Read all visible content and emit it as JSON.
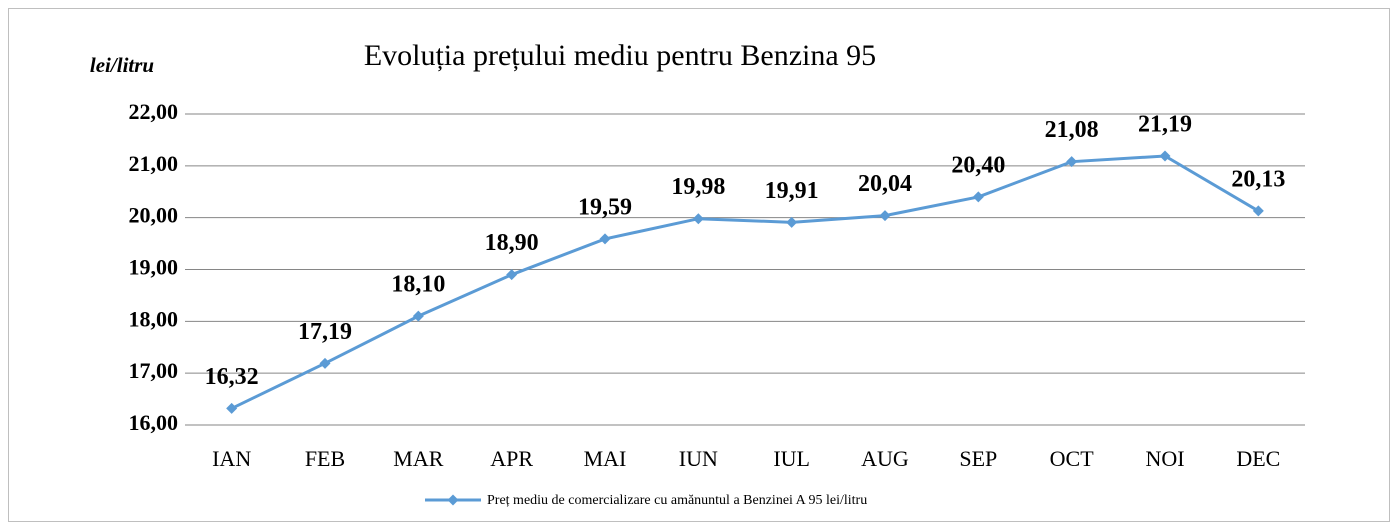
{
  "chart_data": {
    "type": "line",
    "title": "Evoluția prețului mediu pentru Benzina 95",
    "y_label": "lei/litru",
    "categories": [
      "IAN",
      "FEB",
      "MAR",
      "APR",
      "MAI",
      "IUN",
      "IUL",
      "AUG",
      "SEP",
      "OCT",
      "NOI",
      "DEC"
    ],
    "series": [
      {
        "name": "Preț mediu de comercializare cu amănuntul a Benzinei A 95 lei/litru",
        "color": "#5b9bd5",
        "values": [
          16.32,
          17.19,
          18.1,
          18.9,
          19.59,
          19.98,
          19.91,
          20.04,
          20.4,
          21.08,
          21.19,
          20.13
        ],
        "value_labels": [
          "16,32",
          "17,19",
          "18,10",
          "18,90",
          "19,59",
          "19,98",
          "19,91",
          "20,04",
          "20,40",
          "21,08",
          "21,19",
          "20,13"
        ]
      }
    ],
    "ylim": [
      16,
      22
    ],
    "yticks": [
      {
        "value": 16,
        "label": "16,00"
      },
      {
        "value": 17,
        "label": "17,00"
      },
      {
        "value": 18,
        "label": "18,00"
      },
      {
        "value": 19,
        "label": "19,00"
      },
      {
        "value": 20,
        "label": "20,00"
      },
      {
        "value": 21,
        "label": "21,00"
      },
      {
        "value": 22,
        "label": "22,00"
      }
    ],
    "grid": true,
    "legend": "bottom"
  }
}
